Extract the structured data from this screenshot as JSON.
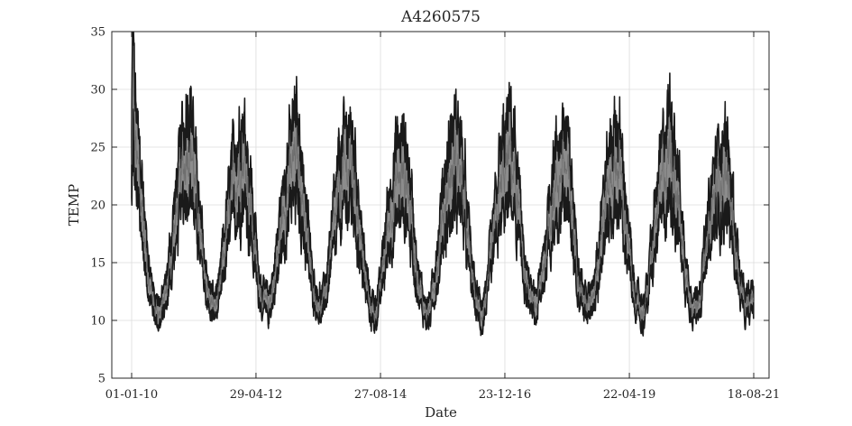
{
  "chart_data": {
    "type": "line",
    "title": "A4260575",
    "xlabel": "Date",
    "ylabel": "TEMP",
    "x_range": [
      "2010-01-01",
      "2021-08-18"
    ],
    "ylim": [
      5,
      35
    ],
    "yticks": [
      5,
      10,
      15,
      20,
      25,
      30,
      35
    ],
    "xticks": [
      {
        "date": "2010-01-01",
        "label": "01-01-10"
      },
      {
        "date": "2012-04-29",
        "label": "29-04-12"
      },
      {
        "date": "2014-08-27",
        "label": "27-08-14"
      },
      {
        "date": "2016-12-23",
        "label": "23-12-16"
      },
      {
        "date": "2019-04-22",
        "label": "22-04-19"
      },
      {
        "date": "2021-08-18",
        "label": "18-08-21"
      }
    ],
    "grid": true,
    "series": [
      {
        "color": "#1a1a1a",
        "fill_color": "#8c8c8c",
        "daily_band": 3.5,
        "points": [
          [
            "2010-01-01",
            22.5
          ],
          [
            "2010-01-10",
            29.5
          ],
          [
            "2010-01-25",
            24.5
          ],
          [
            "2010-02-15",
            22.0
          ],
          [
            "2010-03-10",
            19.5
          ],
          [
            "2010-04-10",
            15.5
          ],
          [
            "2010-05-10",
            12.5
          ],
          [
            "2010-06-15",
            11.0
          ],
          [
            "2010-07-15",
            10.5
          ],
          [
            "2010-08-20",
            12.0
          ],
          [
            "2010-09-20",
            14.5
          ],
          [
            "2010-10-20",
            17.5
          ],
          [
            "2010-11-20",
            20.5
          ],
          [
            "2010-12-20",
            22.5
          ],
          [
            "2011-01-20",
            25.0
          ],
          [
            "2011-02-15",
            24.0
          ],
          [
            "2011-03-20",
            20.0
          ],
          [
            "2011-04-20",
            16.0
          ],
          [
            "2011-05-20",
            13.5
          ],
          [
            "2011-06-20",
            11.5
          ],
          [
            "2011-07-20",
            11.0
          ],
          [
            "2011-08-20",
            12.0
          ],
          [
            "2011-09-20",
            15.0
          ],
          [
            "2011-10-20",
            18.0
          ],
          [
            "2011-11-20",
            20.5
          ],
          [
            "2011-12-20",
            22.0
          ],
          [
            "2012-01-25",
            23.5
          ],
          [
            "2012-02-20",
            22.5
          ],
          [
            "2012-03-20",
            20.0
          ],
          [
            "2012-04-20",
            16.0
          ],
          [
            "2012-05-20",
            13.0
          ],
          [
            "2012-06-20",
            11.5
          ],
          [
            "2012-07-20",
            11.0
          ],
          [
            "2012-08-20",
            12.5
          ],
          [
            "2012-09-20",
            15.0
          ],
          [
            "2012-10-20",
            18.0
          ],
          [
            "2012-11-20",
            20.5
          ],
          [
            "2012-12-20",
            22.0
          ],
          [
            "2013-01-25",
            23.5
          ],
          [
            "2013-02-20",
            22.5
          ],
          [
            "2013-03-20",
            19.5
          ],
          [
            "2013-04-20",
            16.0
          ],
          [
            "2013-05-20",
            13.0
          ],
          [
            "2013-06-20",
            11.5
          ],
          [
            "2013-07-20",
            11.0
          ],
          [
            "2013-08-20",
            12.5
          ],
          [
            "2013-09-20",
            15.5
          ],
          [
            "2013-10-20",
            18.0
          ],
          [
            "2013-11-20",
            20.5
          ],
          [
            "2013-12-20",
            22.0
          ],
          [
            "2014-01-25",
            23.0
          ],
          [
            "2014-02-20",
            22.0
          ],
          [
            "2014-03-20",
            19.5
          ],
          [
            "2014-04-20",
            16.0
          ],
          [
            "2014-05-20",
            13.0
          ],
          [
            "2014-06-20",
            11.0
          ],
          [
            "2014-07-20",
            10.5
          ],
          [
            "2014-08-20",
            12.0
          ],
          [
            "2014-09-20",
            15.0
          ],
          [
            "2014-10-20",
            18.0
          ],
          [
            "2014-11-20",
            20.0
          ],
          [
            "2014-12-20",
            21.5
          ],
          [
            "2015-01-25",
            22.0
          ],
          [
            "2015-02-20",
            21.5
          ],
          [
            "2015-03-20",
            19.0
          ],
          [
            "2015-04-20",
            15.5
          ],
          [
            "2015-05-20",
            12.5
          ],
          [
            "2015-06-20",
            11.0
          ],
          [
            "2015-07-20",
            10.5
          ],
          [
            "2015-08-20",
            12.0
          ],
          [
            "2015-09-20",
            15.0
          ],
          [
            "2015-10-20",
            18.0
          ],
          [
            "2015-11-20",
            20.5
          ],
          [
            "2015-12-20",
            22.0
          ],
          [
            "2016-01-25",
            23.5
          ],
          [
            "2016-02-20",
            22.5
          ],
          [
            "2016-03-20",
            19.5
          ],
          [
            "2016-04-20",
            16.0
          ],
          [
            "2016-05-20",
            13.0
          ],
          [
            "2016-06-20",
            11.0
          ],
          [
            "2016-07-20",
            10.5
          ],
          [
            "2016-08-20",
            12.0
          ],
          [
            "2016-09-20",
            15.0
          ],
          [
            "2016-10-20",
            18.0
          ],
          [
            "2016-11-20",
            20.5
          ],
          [
            "2016-12-20",
            22.0
          ],
          [
            "2017-01-25",
            23.5
          ],
          [
            "2017-02-20",
            22.5
          ],
          [
            "2017-03-20",
            19.5
          ],
          [
            "2017-04-20",
            16.0
          ],
          [
            "2017-05-20",
            13.0
          ],
          [
            "2017-06-20",
            11.5
          ],
          [
            "2017-07-20",
            11.0
          ],
          [
            "2017-08-20",
            12.5
          ],
          [
            "2017-09-20",
            15.0
          ],
          [
            "2017-10-20",
            18.0
          ],
          [
            "2017-11-20",
            20.5
          ],
          [
            "2017-12-20",
            21.5
          ],
          [
            "2018-01-25",
            23.0
          ],
          [
            "2018-02-20",
            22.0
          ],
          [
            "2018-03-20",
            19.5
          ],
          [
            "2018-04-20",
            16.0
          ],
          [
            "2018-05-20",
            13.0
          ],
          [
            "2018-06-20",
            11.5
          ],
          [
            "2018-07-20",
            11.0
          ],
          [
            "2018-08-20",
            12.5
          ],
          [
            "2018-09-20",
            15.0
          ],
          [
            "2018-10-20",
            18.0
          ],
          [
            "2018-11-20",
            20.5
          ],
          [
            "2018-12-20",
            22.0
          ],
          [
            "2019-01-25",
            23.0
          ],
          [
            "2019-02-20",
            22.0
          ],
          [
            "2019-03-20",
            19.0
          ],
          [
            "2019-04-20",
            15.5
          ],
          [
            "2019-05-20",
            12.5
          ],
          [
            "2019-06-20",
            11.0
          ],
          [
            "2019-07-20",
            10.5
          ],
          [
            "2019-08-20",
            12.0
          ],
          [
            "2019-09-20",
            15.0
          ],
          [
            "2019-10-20",
            18.0
          ],
          [
            "2019-11-20",
            20.5
          ],
          [
            "2019-12-20",
            22.5
          ],
          [
            "2020-01-25",
            24.0
          ],
          [
            "2020-02-20",
            23.0
          ],
          [
            "2020-03-20",
            20.0
          ],
          [
            "2020-04-20",
            16.0
          ],
          [
            "2020-05-20",
            13.0
          ],
          [
            "2020-06-20",
            11.5
          ],
          [
            "2020-07-20",
            11.0
          ],
          [
            "2020-08-20",
            12.5
          ],
          [
            "2020-09-20",
            15.0
          ],
          [
            "2020-10-20",
            17.5
          ],
          [
            "2020-11-20",
            20.0
          ],
          [
            "2020-12-20",
            21.5
          ],
          [
            "2021-01-25",
            22.5
          ],
          [
            "2021-02-20",
            21.5
          ],
          [
            "2021-03-20",
            19.0
          ],
          [
            "2021-04-20",
            15.5
          ],
          [
            "2021-05-20",
            12.5
          ],
          [
            "2021-06-20",
            11.0
          ],
          [
            "2021-07-20",
            11.0
          ],
          [
            "2021-08-18",
            12.0
          ]
        ]
      }
    ]
  }
}
